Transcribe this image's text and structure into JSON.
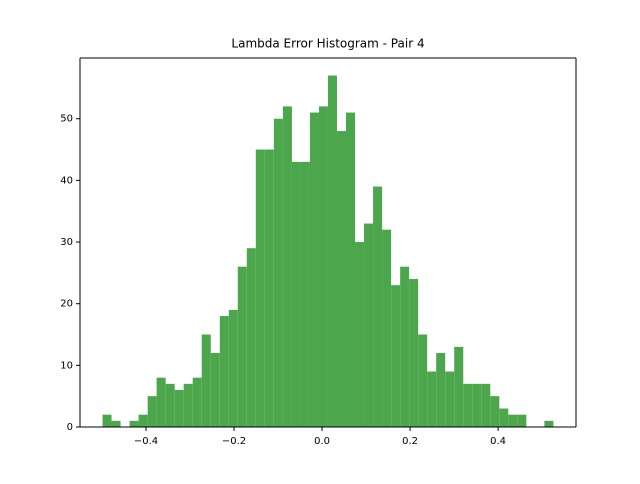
{
  "chart_data": {
    "type": "histogram",
    "title": "Lambda Error Histogram - Pair 4",
    "bins": [
      -0.4988,
      -0.4783,
      -0.4578,
      -0.4373,
      -0.4168,
      -0.3963,
      -0.3759,
      -0.3554,
      -0.3349,
      -0.3144,
      -0.2939,
      -0.2734,
      -0.2529,
      -0.2324,
      -0.2119,
      -0.1915,
      -0.171,
      -0.1505,
      -0.13,
      -0.1095,
      -0.089,
      -0.0685,
      -0.048,
      -0.0275,
      -0.007,
      0.0134,
      0.0339,
      0.0544,
      0.0749,
      0.0954,
      0.1159,
      0.1364,
      0.1569,
      0.1774,
      0.1978,
      0.2183,
      0.2388,
      0.2593,
      0.2798,
      0.3003,
      0.3208,
      0.3413,
      0.3618,
      0.3822,
      0.4027,
      0.4232,
      0.4437,
      0.4642,
      0.4847,
      0.5052,
      0.5257
    ],
    "values": [
      2,
      1,
      0,
      1,
      2,
      5,
      8,
      7,
      6,
      7,
      8,
      15,
      12,
      18,
      19,
      26,
      29,
      45,
      45,
      50,
      52,
      43,
      43,
      51,
      52,
      57,
      48,
      51,
      30,
      33,
      39,
      32,
      23,
      26,
      24,
      15,
      9,
      12,
      9,
      13,
      7,
      7,
      7,
      5,
      3,
      2,
      2,
      0,
      0,
      1
    ],
    "color": "#4ca64c",
    "xlim": [
      -0.55,
      0.577
    ],
    "ylim": [
      0,
      59.85
    ],
    "xticks": [
      {
        "value": -0.4,
        "label": "−0.4"
      },
      {
        "value": -0.2,
        "label": "−0.2"
      },
      {
        "value": 0,
        "label": "0.0"
      },
      0.2,
      0.4
    ],
    "yticks": [
      0,
      10,
      20,
      30,
      40,
      50
    ]
  }
}
